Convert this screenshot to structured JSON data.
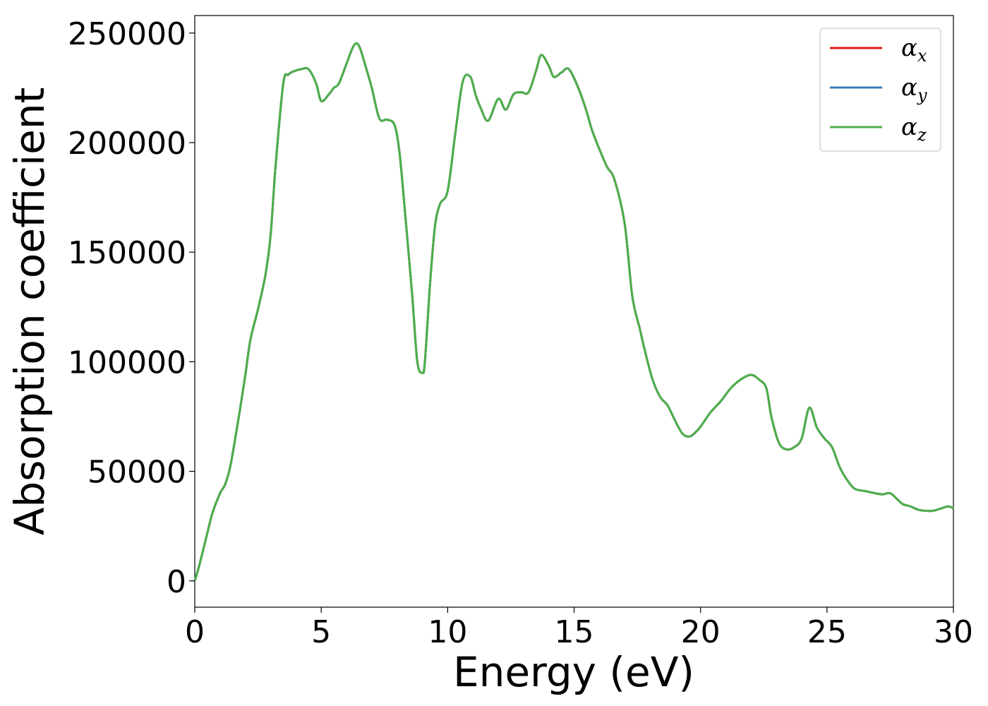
{
  "chart_data": {
    "type": "line",
    "title": "",
    "xlabel": "Energy (eV)",
    "ylabel": "Absorption coefficient",
    "xlim": [
      0,
      30
    ],
    "ylim": [
      -12000,
      258000
    ],
    "xticks": [
      0,
      5,
      10,
      15,
      20,
      25,
      30
    ],
    "xtick_labels": [
      "0",
      "5",
      "10",
      "15",
      "20",
      "25",
      "30"
    ],
    "yticks": [
      0,
      50000,
      100000,
      150000,
      200000,
      250000
    ],
    "ytick_labels": [
      "0",
      "50000",
      "100000",
      "150000",
      "200000",
      "250000"
    ],
    "grid": false,
    "legend_position": "top-right",
    "legend": [
      {
        "symbol": "α",
        "sub": "x",
        "color": "#e41a1c"
      },
      {
        "symbol": "α",
        "sub": "y",
        "color": "#377eb8"
      },
      {
        "symbol": "α",
        "sub": "z",
        "color": "#4daf4a"
      }
    ],
    "x": [
      0,
      0.2,
      0.5,
      0.7,
      1.0,
      1.2,
      1.4,
      1.6,
      1.8,
      2.0,
      2.2,
      2.5,
      2.8,
      3.0,
      3.2,
      3.5,
      3.7,
      3.9,
      4.2,
      4.5,
      4.8,
      5.0,
      5.3,
      5.5,
      5.7,
      6.0,
      6.3,
      6.5,
      6.75,
      7.0,
      7.3,
      7.6,
      7.9,
      8.1,
      8.3,
      8.6,
      8.8,
      9.0,
      9.1,
      9.3,
      9.5,
      9.7,
      10.0,
      10.3,
      10.6,
      10.9,
      11.1,
      11.3,
      11.6,
      12.0,
      12.3,
      12.6,
      12.9,
      13.2,
      13.5,
      13.7,
      14.0,
      14.2,
      14.5,
      14.8,
      15.2,
      15.5,
      15.7,
      16.0,
      16.3,
      16.6,
      17.0,
      17.3,
      17.6,
      17.8,
      18.1,
      18.4,
      18.7,
      19.0,
      19.3,
      19.6,
      19.9,
      20.1,
      20.4,
      20.8,
      21.2,
      21.6,
      22.0,
      22.3,
      22.6,
      22.8,
      23.1,
      23.4,
      23.7,
      24.0,
      24.3,
      24.6,
      24.9,
      25.2,
      25.5,
      25.8,
      26.1,
      26.5,
      26.9,
      27.2,
      27.5,
      27.8,
      28.0,
      28.3,
      28.6,
      28.9,
      29.2,
      29.5,
      29.8,
      30.0
    ],
    "series": [
      {
        "values": [
          0,
          8000,
          22000,
          31000,
          40000,
          44000,
          52000,
          65000,
          79000,
          94000,
          110000,
          124000,
          140000,
          158000,
          190000,
          227000,
          231000,
          232500,
          233500,
          233500,
          227000,
          219000,
          222000,
          225000,
          227000,
          236000,
          244500,
          244000,
          235000,
          225000,
          211000,
          210500,
          208000,
          195000,
          170000,
          130000,
          100000,
          95000,
          100000,
          135000,
          162000,
          172000,
          178000,
          204000,
          228000,
          230000,
          222000,
          216000,
          210000,
          220000,
          215000,
          222000,
          223000,
          223000,
          233000,
          240000,
          235000,
          230000,
          232000,
          233500,
          224000,
          214000,
          206000,
          197000,
          189000,
          183000,
          163000,
          130000,
          115000,
          105000,
          92000,
          84000,
          80000,
          73000,
          67000,
          66000,
          69000,
          72000,
          77000,
          82000,
          88000,
          92000,
          94000,
          92000,
          88000,
          75000,
          63000,
          60000,
          61000,
          65000,
          79000,
          70000,
          65000,
          61000,
          52000,
          46000,
          42000,
          41000,
          40000,
          39500,
          40000,
          37000,
          35000,
          34000,
          32500,
          32000,
          32000,
          33000,
          34000,
          33000
        ]
      }
    ]
  }
}
